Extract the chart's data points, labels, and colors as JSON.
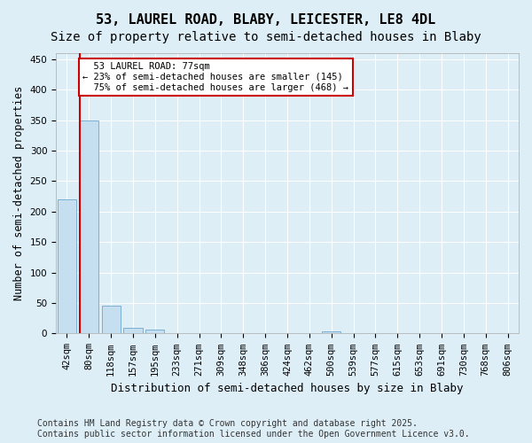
{
  "title1": "53, LAUREL ROAD, BLABY, LEICESTER, LE8 4DL",
  "title2": "Size of property relative to semi-detached houses in Blaby",
  "xlabel": "Distribution of semi-detached houses by size in Blaby",
  "ylabel": "Number of semi-detached properties",
  "bin_labels": [
    "42sqm",
    "80sqm",
    "118sqm",
    "157sqm",
    "195sqm",
    "233sqm",
    "271sqm",
    "309sqm",
    "348sqm",
    "386sqm",
    "424sqm",
    "462sqm",
    "500sqm",
    "539sqm",
    "577sqm",
    "615sqm",
    "653sqm",
    "691sqm",
    "730sqm",
    "768sqm",
    "806sqm"
  ],
  "bar_heights": [
    220,
    350,
    45,
    9,
    6,
    0,
    0,
    0,
    0,
    0,
    0,
    0,
    3,
    0,
    0,
    0,
    0,
    0,
    0,
    0,
    0
  ],
  "bar_color": "#c6dff0",
  "bar_edge_color": "#7ab0d4",
  "property_label": "53 LAUREL ROAD: 77sqm",
  "pct_smaller": 23,
  "count_smaller": 145,
  "pct_larger": 75,
  "count_larger": 468,
  "vline_x": 0.575,
  "ylim": [
    0,
    460
  ],
  "yticks": [
    0,
    50,
    100,
    150,
    200,
    250,
    300,
    350,
    400,
    450
  ],
  "annotation_box_color": "#ffffff",
  "annotation_box_edge": "#cc0000",
  "vline_color": "#cc0000",
  "background_color": "#ddeef7",
  "footer": "Contains HM Land Registry data © Crown copyright and database right 2025.\nContains public sector information licensed under the Open Government Licence v3.0.",
  "title1_fontsize": 11,
  "title2_fontsize": 10,
  "xlabel_fontsize": 9,
  "ylabel_fontsize": 8.5,
  "tick_fontsize": 7.5,
  "footer_fontsize": 7
}
